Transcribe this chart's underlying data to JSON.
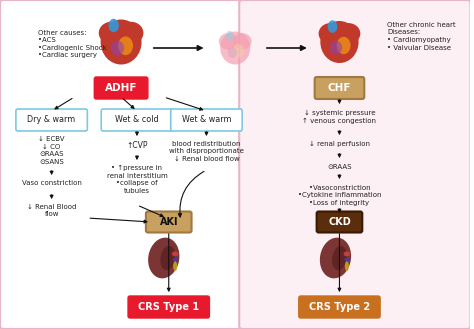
{
  "background_color": "#ffffff",
  "left_panel_facecolor": "#ffffff",
  "right_panel_facecolor": "#fdf0f5",
  "panel_edgecolor": "#e8b4c8",
  "adhf_label": "ADHF",
  "adhf_box_facecolor": "#e8192c",
  "adhf_text_color": "#ffffff",
  "chf_label": "CHF",
  "chf_box_facecolor": "#c8a060",
  "chf_text_color": "#ffffff",
  "aki_label": "AKI",
  "aki_box_facecolor": "#c8a060",
  "aki_text_color": "#111111",
  "ckd_label": "CKD",
  "ckd_box_facecolor": "#5a2d0c",
  "ckd_text_color": "#ffffff",
  "crs1_label": "CRS Type 1",
  "crs1_box_facecolor": "#e8192c",
  "crs1_text_color": "#ffffff",
  "crs2_label": "CRS Type 2",
  "crs2_box_facecolor": "#c87020",
  "crs2_text_color": "#ffffff",
  "other_causes_text": "Other causes:\n•ACS\n•Cardiogenic Shock\n•Cardiac surgery",
  "other_chronic_text": "Other chronic heart\nDiseases:\n• Cardiomyopathy\n• Valvular Disease",
  "dry_warm_label": "Dry & warm",
  "wet_cold_label": "Wet & cold",
  "wet_warm_label": "Wet & warm",
  "outline_box_edgecolor": "#7ec8e3",
  "dry_warm_text": "↓ ECBV\n↓ CO\n⊙RAAS\n⊙SANS",
  "dry_warm_text2": "Vaso constriction",
  "dry_warm_text3": "↓ Renal Blood\nflow",
  "wet_cold_text": "↑CVP",
  "wet_cold_text2": "• ↑pressure in\nrenal interstitium\n•collapse of\ntubules",
  "wet_warm_text": "blood redistribution\nwith disproportionate\n↓ Renal blood flow",
  "chf_flow1": "↓ systemic pressure\n↑ venous congestion",
  "chf_flow2": "↓ renal perfusion",
  "chf_flow3": "⊙RAAS",
  "chf_flow4": "•Vasoconstriction\n•Cytokine inflammation\n•Loss of integrity",
  "heart_left_color": "#8b1a1a",
  "heart_center_color": "#f4a0b0",
  "heart_right_color": "#8b1a1a",
  "kidney_color": "#7b3535",
  "kidney_detail1": "#c04040",
  "kidney_detail2": "#4040a0",
  "kidney_detail3": "#c8a020"
}
